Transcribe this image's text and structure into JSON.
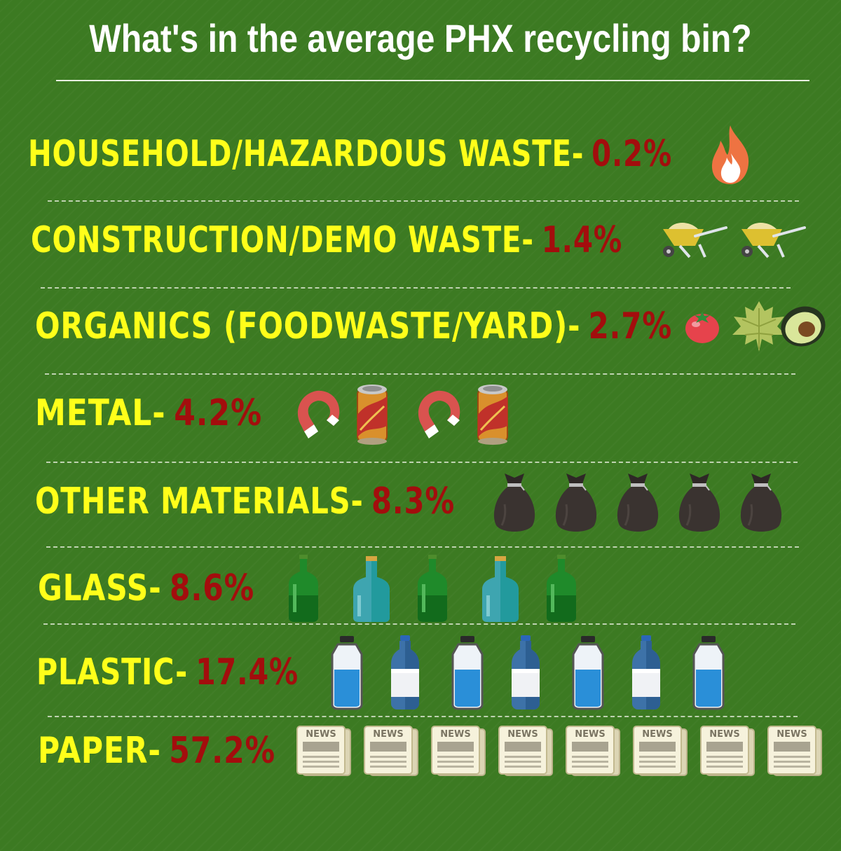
{
  "title": "What's in the average PHX recycling bin?",
  "colors": {
    "background": "#3c7a22",
    "label": "#ffff1a",
    "percent": "#a30d0d",
    "title": "#ffffff"
  },
  "chart_data": {
    "type": "pictograph",
    "title": "What's in the average PHX recycling bin?",
    "unit": "%",
    "categories": [
      "HOUSEHOLD/HAZARDOUS WASTE",
      "CONSTRUCTION/DEMO WASTE",
      "ORGANICS (FOODWASTE/YARD)",
      "METAL",
      "OTHER MATERIALS",
      "GLASS",
      "PLASTIC",
      "PAPER"
    ],
    "values": [
      0.2,
      1.4,
      2.7,
      4.2,
      8.3,
      8.6,
      17.4,
      57.2
    ],
    "rows": [
      {
        "label": "HOUSEHOLD/HAZARDOUS WASTE-",
        "percent_text": "0.2%",
        "value": 0.2,
        "icons": [
          "flame-icon"
        ]
      },
      {
        "label": "CONSTRUCTION/DEMO WASTE-",
        "percent_text": "1.4%",
        "value": 1.4,
        "icons": [
          "wheelbarrow-icon",
          "wheelbarrow-icon"
        ]
      },
      {
        "label": "ORGANICS (FOODWASTE/YARD)-",
        "percent_text": "2.7%",
        "value": 2.7,
        "icons": [
          "tomato-icon",
          "leaf-icon",
          "avocado-icon"
        ]
      },
      {
        "label": "METAL-",
        "percent_text": "4.2%",
        "value": 4.2,
        "icons": [
          "magnet-icon",
          "can-icon",
          "magnet-icon",
          "can-icon"
        ]
      },
      {
        "label": "OTHER MATERIALS-",
        "percent_text": "8.3%",
        "value": 8.3,
        "icons": [
          "trash-bag-icon",
          "trash-bag-icon",
          "trash-bag-icon",
          "trash-bag-icon",
          "trash-bag-icon"
        ]
      },
      {
        "label": "GLASS-",
        "percent_text": "8.6%",
        "value": 8.6,
        "icons": [
          "green-bottle-icon",
          "teal-bottle-icon",
          "green-bottle-icon",
          "teal-bottle-icon",
          "green-bottle-icon"
        ]
      },
      {
        "label": "PLASTIC-",
        "percent_text": "17.4%",
        "value": 17.4,
        "icons": [
          "water-jug-icon",
          "water-bottle-icon",
          "water-jug-icon",
          "water-bottle-icon",
          "water-jug-icon",
          "water-bottle-icon",
          "water-jug-icon"
        ]
      },
      {
        "label": "PAPER-",
        "percent_text": "57.2%",
        "value": 57.2,
        "icons": [
          "newspaper-icon",
          "newspaper-icon",
          "newspaper-icon",
          "newspaper-icon",
          "newspaper-icon",
          "newspaper-icon",
          "newspaper-icon",
          "newspaper-icon"
        ]
      }
    ]
  },
  "newspaper_text": "NEWS"
}
